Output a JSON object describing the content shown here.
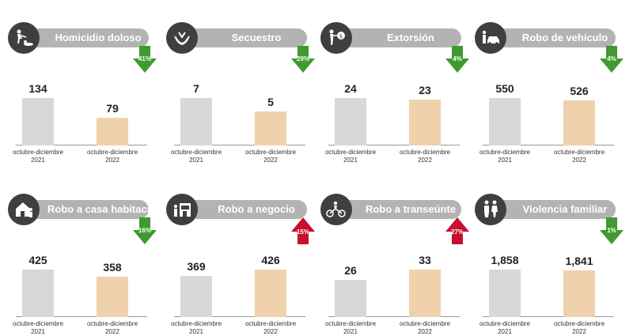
{
  "chart_data": [
    {
      "type": "bar",
      "title": "Homicidio doloso",
      "categories": [
        [
          "octubre-diciembre",
          "2021"
        ],
        [
          "octubre-diciembre",
          "2022"
        ]
      ],
      "values": [
        134,
        79
      ],
      "value_labels": [
        "134",
        "79"
      ],
      "change": {
        "label": "41%",
        "direction": "down",
        "color": "#3f9a2f"
      },
      "icon": "homicide-icon"
    },
    {
      "type": "bar",
      "title": "Secuestro",
      "categories": [
        [
          "octubre-diciembre",
          "2021"
        ],
        [
          "octubre-diciembre",
          "2022"
        ]
      ],
      "values": [
        7,
        5
      ],
      "value_labels": [
        "7",
        "5"
      ],
      "change": {
        "label": "29%",
        "direction": "down",
        "color": "#3f9a2f"
      },
      "icon": "kidnapping-hands-icon"
    },
    {
      "type": "bar",
      "title": "Extorsión",
      "categories": [
        [
          "octubre-diciembre",
          "2021"
        ],
        [
          "octubre-diciembre",
          "2022"
        ]
      ],
      "values": [
        24,
        23
      ],
      "value_labels": [
        "24",
        "23"
      ],
      "change": {
        "label": "4%",
        "direction": "down",
        "color": "#3f9a2f"
      },
      "icon": "extortion-money-icon"
    },
    {
      "type": "bar",
      "title": "Robo de vehículo",
      "categories": [
        [
          "octubre-diciembre",
          "2021"
        ],
        [
          "octubre-diciembre",
          "2022"
        ]
      ],
      "values": [
        550,
        526
      ],
      "value_labels": [
        "550",
        "526"
      ],
      "change": {
        "label": "4%",
        "direction": "down",
        "color": "#3f9a2f"
      },
      "icon": "car-theft-icon"
    },
    {
      "type": "bar",
      "title": "Robo a casa habitación",
      "categories": [
        [
          "octubre-diciembre",
          "2021"
        ],
        [
          "octubre-diciembre",
          "2022"
        ]
      ],
      "values": [
        425,
        358
      ],
      "value_labels": [
        "425",
        "358"
      ],
      "change": {
        "label": "16%",
        "direction": "down",
        "color": "#3f9a2f"
      },
      "icon": "house-theft-icon"
    },
    {
      "type": "bar",
      "title": "Robo a negocio",
      "categories": [
        [
          "octubre-diciembre",
          "2021"
        ],
        [
          "octubre-diciembre",
          "2022"
        ]
      ],
      "values": [
        369,
        426
      ],
      "value_labels": [
        "369",
        "426"
      ],
      "change": {
        "label": "15%",
        "direction": "up",
        "color": "#c8102e"
      },
      "icon": "store-theft-icon"
    },
    {
      "type": "bar",
      "title": "Robo a transeúnte",
      "categories": [
        [
          "octubre-diciembre",
          "2021"
        ],
        [
          "octubre-diciembre",
          "2022"
        ]
      ],
      "values": [
        26,
        33
      ],
      "value_labels": [
        "26",
        "33"
      ],
      "change": {
        "label": "27%",
        "direction": "up",
        "color": "#c8102e"
      },
      "icon": "pedestrian-theft-icon"
    },
    {
      "type": "bar",
      "title": "Violencia familiar",
      "categories": [
        [
          "octubre-diciembre",
          "2021"
        ],
        [
          "octubre-diciembre",
          "2022"
        ]
      ],
      "values": [
        1858,
        1841
      ],
      "value_labels": [
        "1,858",
        "1,841"
      ],
      "change": {
        "label": "1%",
        "direction": "down",
        "color": "#3f9a2f"
      },
      "icon": "family-violence-icon"
    }
  ],
  "colors": {
    "prev_bar": "#d8d8d8",
    "curr_bar": "#efd2ac",
    "header_pill": "#b3b3b3",
    "icon_circle": "#3f3f3f",
    "down": "#3f9a2f",
    "up": "#c8102e"
  }
}
